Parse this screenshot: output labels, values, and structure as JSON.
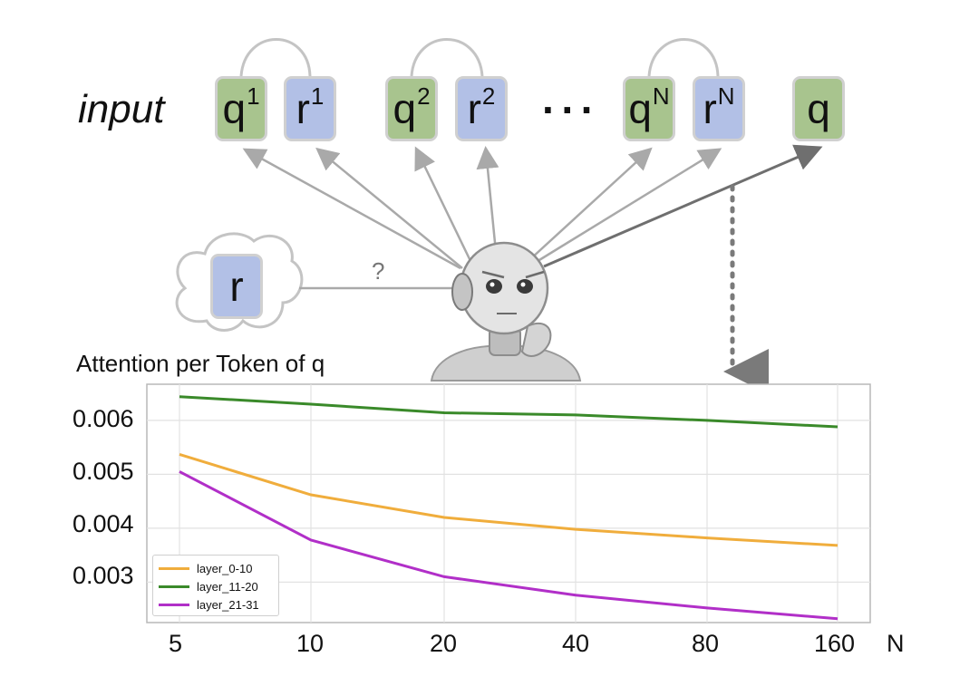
{
  "diagram": {
    "input_label": "input",
    "tokens": [
      {
        "letter": "q",
        "sup": "1",
        "kind": "q"
      },
      {
        "letter": "r",
        "sup": "1",
        "kind": "r"
      },
      {
        "letter": "q",
        "sup": "2",
        "kind": "q"
      },
      {
        "letter": "r",
        "sup": "2",
        "kind": "r"
      },
      {
        "letter": "q",
        "sup": "N",
        "kind": "q"
      },
      {
        "letter": "r",
        "sup": "N",
        "kind": "r"
      },
      {
        "letter": "q",
        "sup": "",
        "kind": "q"
      }
    ],
    "ellipsis": "···",
    "thought_token": "r",
    "question_mark": "?",
    "colors": {
      "q_token": "#a8c48e",
      "r_token": "#b2c0e6"
    }
  },
  "chart_data": {
    "type": "line",
    "title": "Attention per Token of q",
    "xlabel": "N",
    "ylabel": "",
    "categories": [
      "5",
      "10",
      "20",
      "40",
      "80",
      "160"
    ],
    "series": [
      {
        "name": "layer_0-10",
        "color": "#f0ad3c",
        "values": [
          0.00537,
          0.00462,
          0.0042,
          0.00398,
          0.00382,
          0.00368
        ]
      },
      {
        "name": "layer_11-20",
        "color": "#3a8a2a",
        "values": [
          0.00644,
          0.0063,
          0.00614,
          0.0061,
          0.006,
          0.00588
        ]
      },
      {
        "name": "layer_21-31",
        "color": "#b12fc8",
        "values": [
          0.00505,
          0.00378,
          0.0031,
          0.00276,
          0.00252,
          0.00232
        ]
      }
    ],
    "yticks": [
      "0.003",
      "0.004",
      "0.005",
      "0.006"
    ],
    "ytick_values": [
      0.003,
      0.004,
      0.005,
      0.006
    ],
    "ylim": [
      0.00225,
      0.00667
    ],
    "grid": true,
    "legend_position": "bottom-left"
  }
}
